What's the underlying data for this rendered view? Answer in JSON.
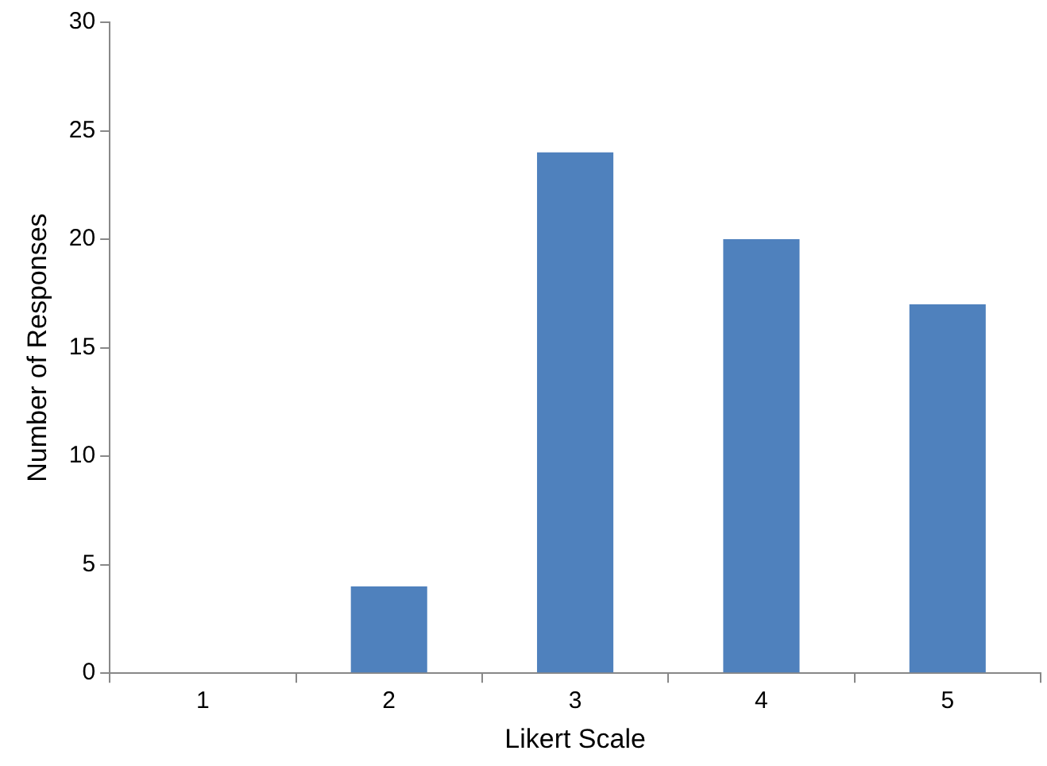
{
  "chart_data": {
    "type": "bar",
    "xlabel": "Likert Scale",
    "ylabel": "Number of Responses",
    "categories": [
      "1",
      "2",
      "3",
      "4",
      "5"
    ],
    "values": [
      0,
      4,
      24,
      20,
      17
    ],
    "color": "#4f81bd",
    "ylim": [
      0,
      30
    ],
    "yticks": [
      0,
      5,
      10,
      15,
      20,
      25,
      30
    ]
  }
}
